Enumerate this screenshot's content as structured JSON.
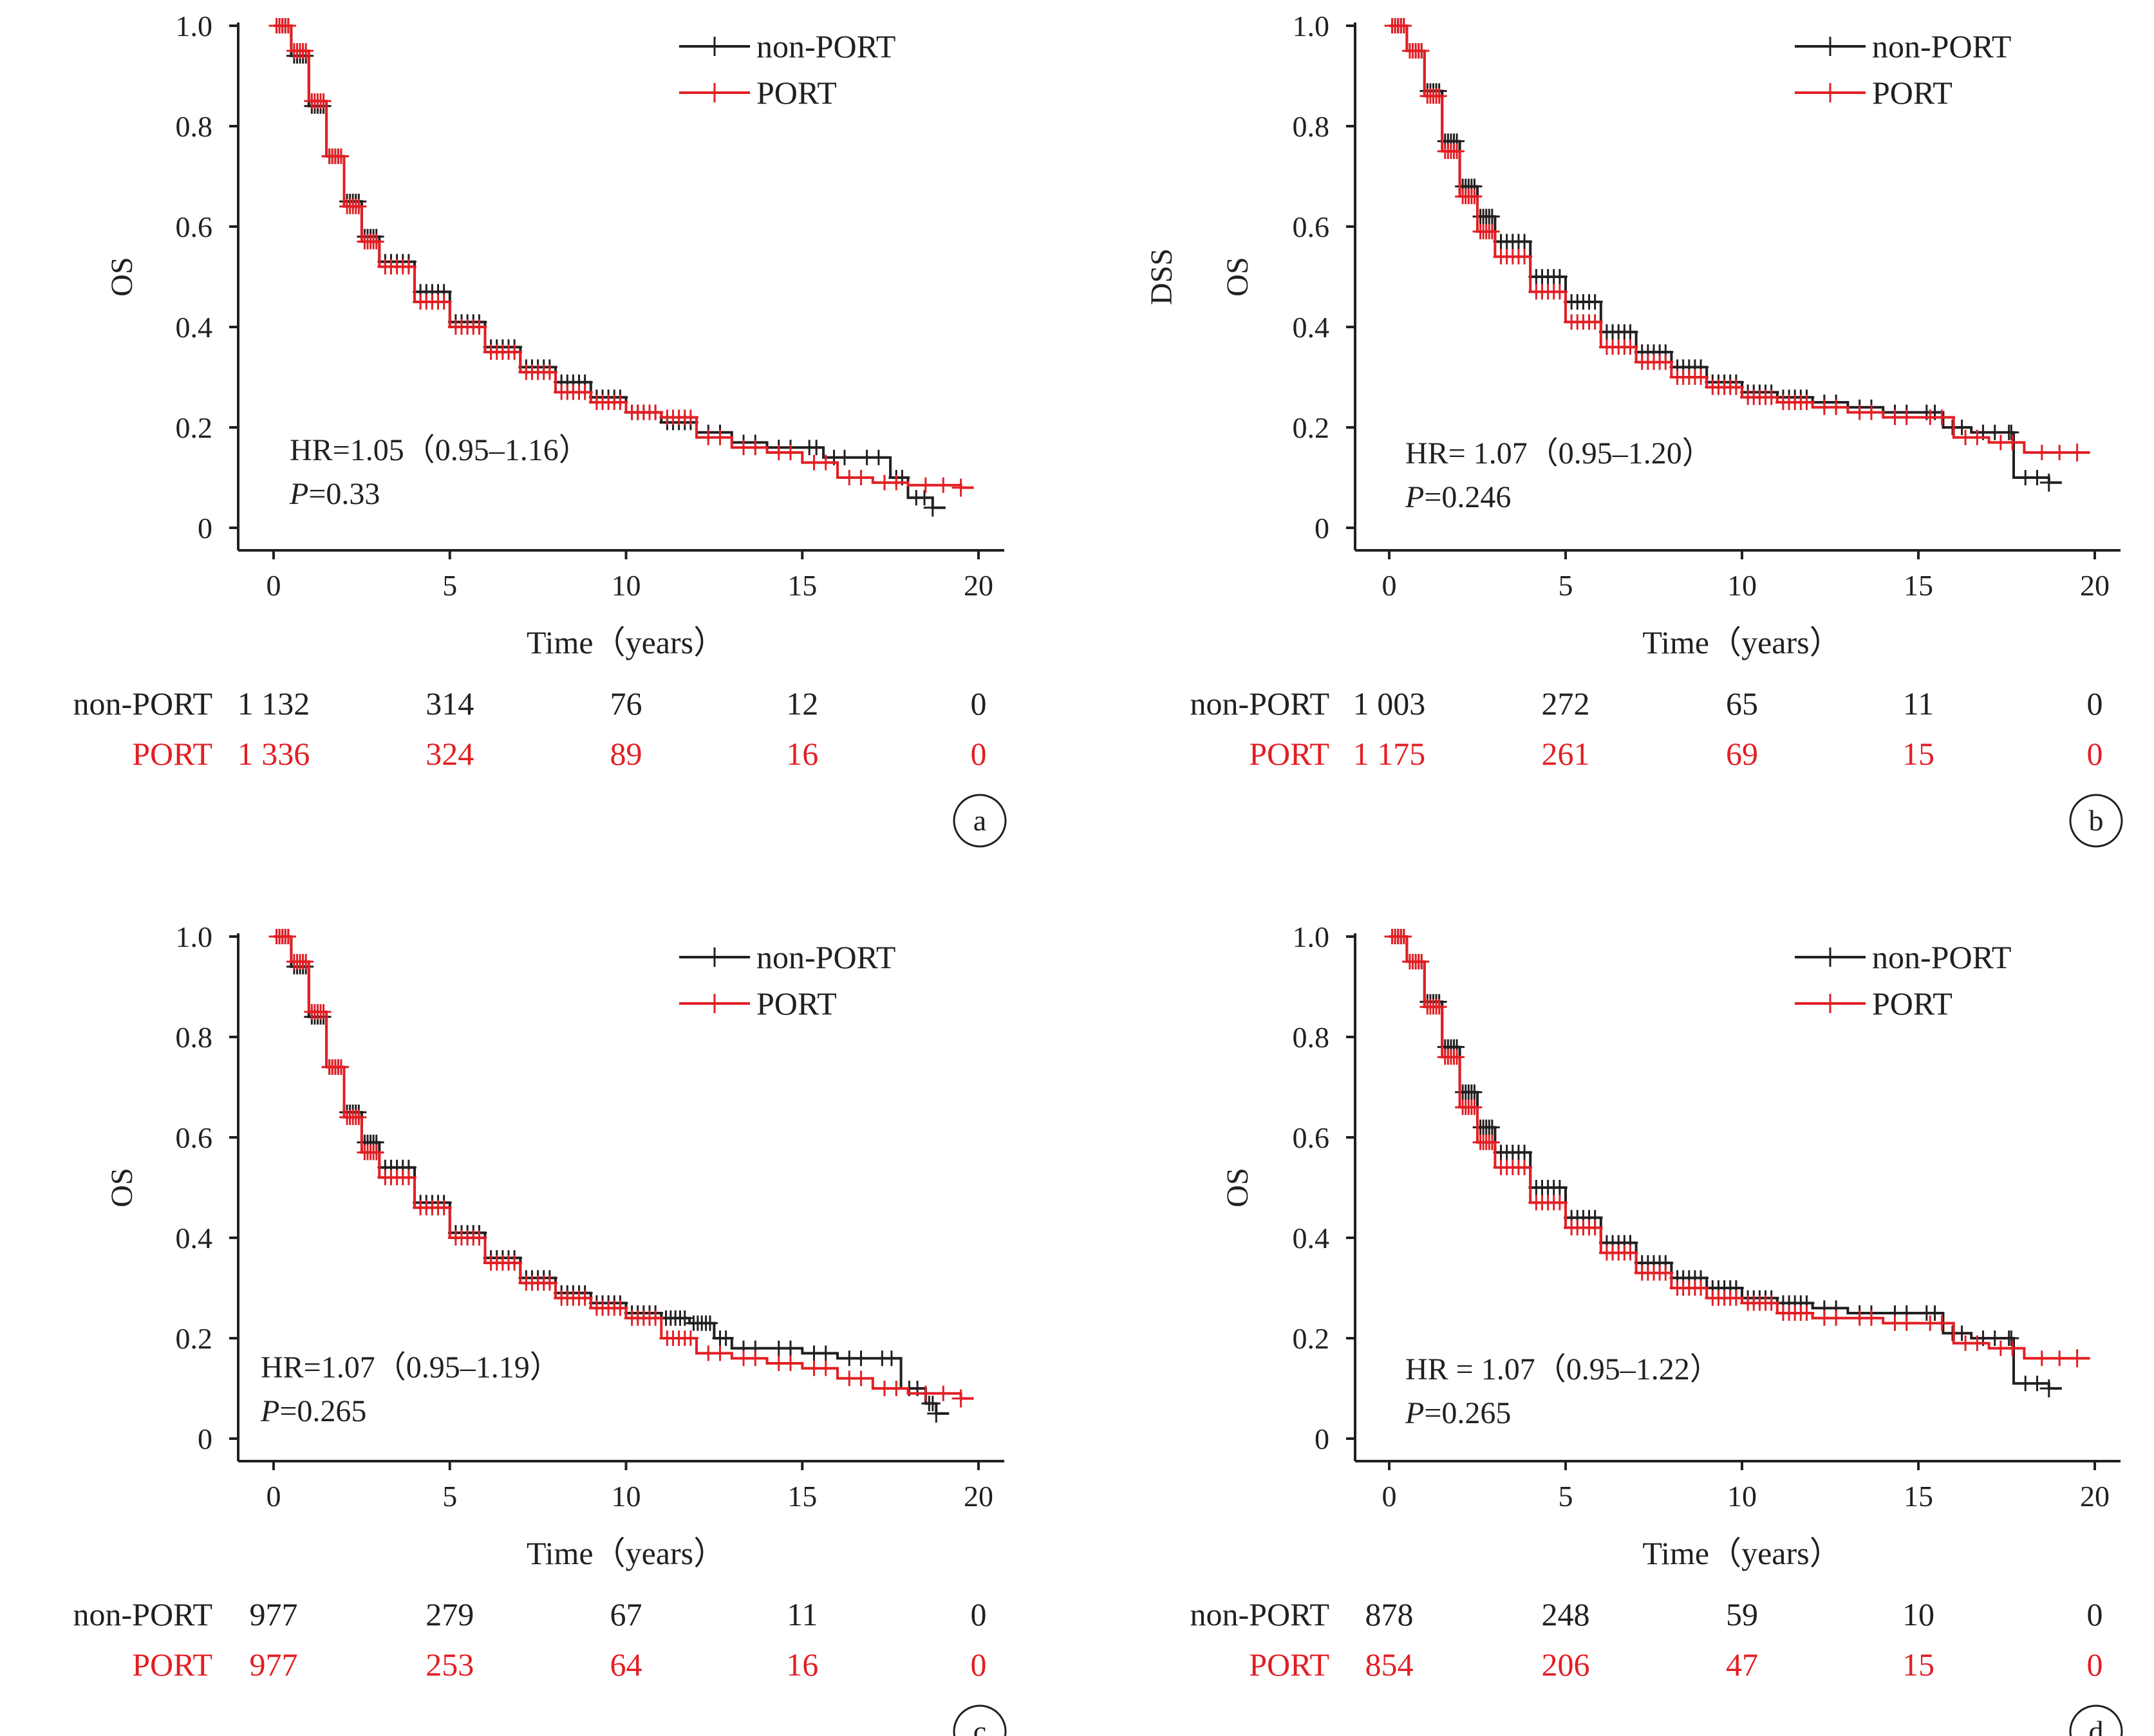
{
  "colors": {
    "non_port": "#231f20",
    "port": "#e31e24",
    "axis": "#231f20"
  },
  "chart_data": [
    {
      "panel": "a",
      "type": "line",
      "ylabel": "OS",
      "xlabel": "Time（years）",
      "xlim": [
        0,
        20
      ],
      "ylim": [
        0,
        1.0
      ],
      "x_ticks": [
        "0",
        "5",
        "10",
        "15",
        "20"
      ],
      "y_ticks": [
        "0",
        "0.2",
        "0.4",
        "0.6",
        "0.8",
        "1.0"
      ],
      "legend": [
        "non-PORT",
        "PORT"
      ],
      "annotation_hr": "HR=1.05（0.95–1.16）",
      "annotation_p_label": "P",
      "annotation_p_value": "=0.33",
      "series": [
        {
          "name": "non-PORT",
          "x": [
            0,
            0.5,
            1,
            1.5,
            2,
            2.5,
            3,
            4,
            5,
            6,
            7,
            8,
            9,
            10,
            11,
            12,
            13,
            14,
            15,
            15.6,
            16.5,
            17.5,
            18,
            18.7
          ],
          "values": [
            1.0,
            0.94,
            0.84,
            0.74,
            0.65,
            0.58,
            0.53,
            0.47,
            0.41,
            0.36,
            0.32,
            0.29,
            0.26,
            0.23,
            0.21,
            0.19,
            0.17,
            0.16,
            0.16,
            0.14,
            0.14,
            0.1,
            0.06,
            0.04
          ]
        },
        {
          "name": "PORT",
          "x": [
            0,
            0.5,
            1,
            1.5,
            2,
            2.5,
            3,
            4,
            5,
            6,
            7,
            8,
            9,
            10,
            11,
            12,
            13,
            14,
            15,
            16,
            17,
            18,
            19.5
          ],
          "values": [
            1.0,
            0.95,
            0.85,
            0.74,
            0.64,
            0.57,
            0.52,
            0.45,
            0.4,
            0.35,
            0.31,
            0.27,
            0.25,
            0.23,
            0.22,
            0.18,
            0.16,
            0.15,
            0.13,
            0.1,
            0.09,
            0.085,
            0.08
          ]
        }
      ],
      "risk_table": {
        "non-PORT": [
          "1 132",
          "314",
          "76",
          "12",
          "0"
        ],
        "PORT": [
          "1 336",
          "324",
          "89",
          "16",
          "0"
        ]
      }
    },
    {
      "panel": "b",
      "type": "line",
      "ylabel": "OS",
      "ylabel2": "DSS",
      "xlabel": "Time（years）",
      "xlim": [
        0,
        20
      ],
      "ylim": [
        0,
        1.0
      ],
      "x_ticks": [
        "0",
        "5",
        "10",
        "15",
        "20"
      ],
      "y_ticks": [
        "0",
        "0.2",
        "0.4",
        "0.6",
        "0.8",
        "1.0"
      ],
      "legend": [
        "non-PORT",
        "PORT"
      ],
      "annotation_hr": "HR= 1.07（0.95–1.20）",
      "annotation_p_label": "P",
      "annotation_p_value": "=0.246",
      "series": [
        {
          "name": "non-PORT",
          "x": [
            0,
            0.5,
            1,
            1.5,
            2,
            2.5,
            3,
            4,
            5,
            6,
            7,
            8,
            9,
            10,
            11,
            12,
            13,
            14,
            15,
            15.7,
            16.5,
            17.5,
            17.7,
            18.7
          ],
          "values": [
            1.0,
            0.95,
            0.87,
            0.77,
            0.68,
            0.62,
            0.57,
            0.5,
            0.45,
            0.39,
            0.35,
            0.32,
            0.29,
            0.27,
            0.26,
            0.25,
            0.24,
            0.23,
            0.23,
            0.2,
            0.19,
            0.19,
            0.1,
            0.09
          ]
        },
        {
          "name": "PORT",
          "x": [
            0,
            0.5,
            1,
            1.5,
            2,
            2.5,
            3,
            4,
            5,
            6,
            7,
            8,
            9,
            10,
            11,
            12,
            13,
            14,
            15,
            16,
            17,
            18,
            19.5
          ],
          "values": [
            1.0,
            0.95,
            0.86,
            0.75,
            0.66,
            0.59,
            0.54,
            0.47,
            0.41,
            0.36,
            0.33,
            0.3,
            0.28,
            0.26,
            0.25,
            0.24,
            0.23,
            0.22,
            0.22,
            0.18,
            0.17,
            0.15,
            0.15
          ]
        }
      ],
      "risk_table": {
        "non-PORT": [
          "1 003",
          "272",
          "65",
          "11",
          "0"
        ],
        "PORT": [
          "1 175",
          "261",
          "69",
          "15",
          "0"
        ]
      }
    },
    {
      "panel": "c",
      "type": "line",
      "ylabel": "OS",
      "xlabel": "Time（years）",
      "xlim": [
        0,
        20
      ],
      "ylim": [
        0,
        1.0
      ],
      "x_ticks": [
        "0",
        "5",
        "10",
        "15",
        "20"
      ],
      "y_ticks": [
        "0",
        "0.2",
        "0.4",
        "0.6",
        "0.8",
        "1.0"
      ],
      "legend": [
        "non-PORT",
        "PORT"
      ],
      "annotation_hr": "HR=1.07（0.95–1.19）",
      "annotation_p_label": "P",
      "annotation_p_value": "=0.265",
      "series": [
        {
          "name": "non-PORT",
          "x": [
            0,
            0.5,
            1,
            1.5,
            2,
            2.5,
            3,
            4,
            5,
            6,
            7,
            8,
            9,
            10,
            11,
            11.8,
            12.5,
            13,
            14,
            15,
            16,
            17,
            17.8,
            18.5,
            18.8
          ],
          "values": [
            1.0,
            0.94,
            0.84,
            0.74,
            0.65,
            0.59,
            0.54,
            0.47,
            0.41,
            0.36,
            0.32,
            0.29,
            0.27,
            0.25,
            0.24,
            0.23,
            0.2,
            0.18,
            0.18,
            0.17,
            0.16,
            0.16,
            0.1,
            0.07,
            0.05
          ]
        },
        {
          "name": "PORT",
          "x": [
            0,
            0.5,
            1,
            1.5,
            2,
            2.5,
            3,
            4,
            5,
            6,
            7,
            8,
            9,
            10,
            11,
            12,
            13,
            14,
            15,
            16,
            17,
            18,
            19.5
          ],
          "values": [
            1.0,
            0.95,
            0.85,
            0.74,
            0.64,
            0.57,
            0.52,
            0.46,
            0.4,
            0.35,
            0.31,
            0.28,
            0.26,
            0.24,
            0.2,
            0.17,
            0.16,
            0.15,
            0.14,
            0.12,
            0.1,
            0.09,
            0.08
          ]
        }
      ],
      "risk_table": {
        "non-PORT": [
          "977",
          "279",
          "67",
          "11",
          "0"
        ],
        "PORT": [
          "977",
          "253",
          "64",
          "16",
          "0"
        ]
      }
    },
    {
      "panel": "d",
      "type": "line",
      "ylabel": "OS",
      "xlabel": "Time（years）",
      "xlim": [
        0,
        20
      ],
      "ylim": [
        0,
        1.0
      ],
      "x_ticks": [
        "0",
        "5",
        "10",
        "15",
        "20"
      ],
      "y_ticks": [
        "0",
        "0.2",
        "0.4",
        "0.6",
        "0.8",
        "1.0"
      ],
      "legend": [
        "non-PORT",
        "PORT"
      ],
      "annotation_hr": "HR = 1.07（0.95–1.22）",
      "annotation_p_label": "P",
      "annotation_p_value": "=0.265",
      "series": [
        {
          "name": "non-PORT",
          "x": [
            0,
            0.5,
            1,
            1.5,
            2,
            2.5,
            3,
            4,
            5,
            6,
            7,
            8,
            9,
            10,
            11,
            12,
            13,
            14,
            15,
            15.7,
            16.5,
            17.5,
            17.7,
            18.7
          ],
          "values": [
            1.0,
            0.95,
            0.87,
            0.78,
            0.69,
            0.62,
            0.57,
            0.5,
            0.44,
            0.39,
            0.35,
            0.32,
            0.3,
            0.28,
            0.27,
            0.26,
            0.25,
            0.25,
            0.25,
            0.21,
            0.2,
            0.2,
            0.11,
            0.1
          ]
        },
        {
          "name": "PORT",
          "x": [
            0,
            0.5,
            1,
            1.5,
            2,
            2.5,
            3,
            4,
            5,
            6,
            7,
            8,
            9,
            10,
            11,
            12,
            13,
            14,
            15,
            16,
            17,
            18,
            19.5
          ],
          "values": [
            1.0,
            0.95,
            0.86,
            0.76,
            0.66,
            0.59,
            0.54,
            0.47,
            0.42,
            0.37,
            0.33,
            0.3,
            0.28,
            0.27,
            0.25,
            0.24,
            0.24,
            0.23,
            0.23,
            0.19,
            0.18,
            0.16,
            0.16
          ]
        }
      ],
      "risk_table": {
        "non-PORT": [
          "878",
          "248",
          "59",
          "10",
          "0"
        ],
        "PORT": [
          "854",
          "206",
          "47",
          "15",
          "0"
        ]
      }
    }
  ]
}
